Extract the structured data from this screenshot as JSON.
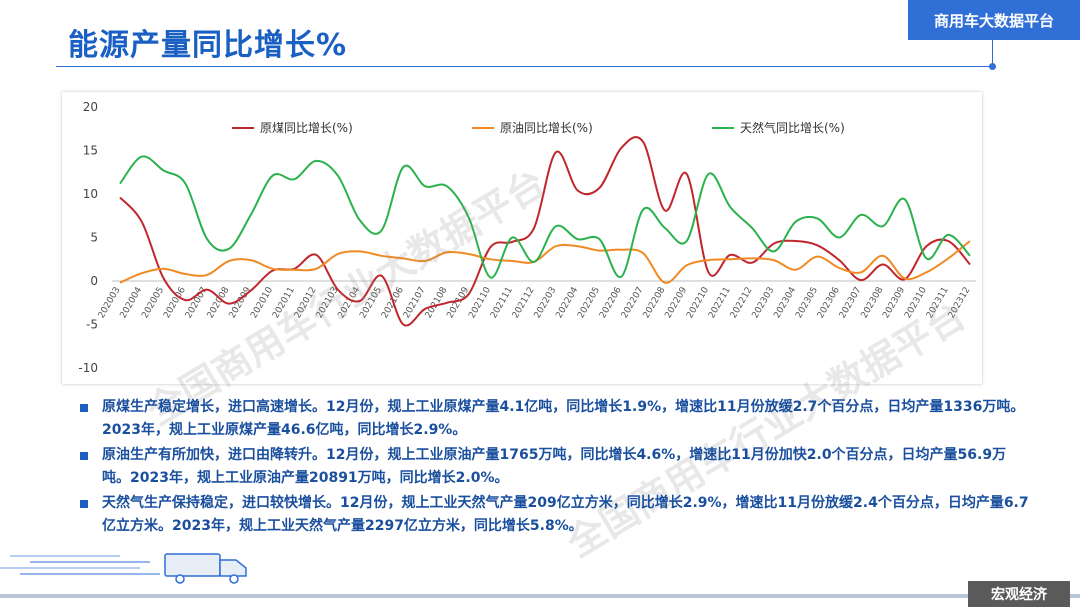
{
  "page": {
    "title": "能源产量同比增长%",
    "brand": "商用车大数据平台",
    "section_tag": "宏观经济"
  },
  "watermark": "全国商用车行业大数据平台",
  "chart_data": {
    "type": "line",
    "ylim": [
      -10,
      20
    ],
    "yticks": [
      20,
      15,
      10,
      5,
      0,
      -5,
      -10
    ],
    "x_labels": [
      "202003",
      "202004",
      "202005",
      "202006",
      "202007",
      "202008",
      "202009",
      "202010",
      "202011",
      "202012",
      "202103",
      "202104",
      "202105",
      "202106",
      "202107",
      "202108",
      "202109",
      "202110",
      "202111",
      "202112",
      "202203",
      "202204",
      "202205",
      "202206",
      "202207",
      "202208",
      "202209",
      "202210",
      "202211",
      "202212",
      "202303",
      "202304",
      "202305",
      "202306",
      "202307",
      "202308",
      "202309",
      "202310",
      "202311",
      "202312"
    ],
    "legend_position": "top",
    "series": [
      {
        "name": "原煤同比增长(%)",
        "color": "#c0262d",
        "values": [
          9.6,
          6.8,
          0.3,
          -2.2,
          -1.0,
          -2.6,
          -1.1,
          1.2,
          1.4,
          3.0,
          -1.0,
          -2.3,
          0.6,
          -5.0,
          -3.2,
          -2.5,
          -1.5,
          3.9,
          4.5,
          6.1,
          14.8,
          10.4,
          10.7,
          15.3,
          16.0,
          8.1,
          12.3,
          1.0,
          3.0,
          2.1,
          4.3,
          4.6,
          4.1,
          2.4,
          0.1,
          1.9,
          0.2,
          4.0,
          4.6,
          1.9
        ]
      },
      {
        "name": "原油同比增长(%)",
        "color": "#f08a24",
        "values": [
          -0.2,
          0.9,
          1.4,
          0.8,
          0.7,
          2.3,
          2.4,
          1.4,
          1.3,
          1.4,
          3.1,
          3.4,
          2.9,
          2.6,
          2.3,
          3.3,
          3.1,
          2.5,
          2.3,
          2.2,
          4.0,
          4.0,
          3.5,
          3.6,
          3.2,
          -0.2,
          1.8,
          2.4,
          2.5,
          2.6,
          2.4,
          1.3,
          2.8,
          1.5,
          1.0,
          2.9,
          0.3,
          1.0,
          2.6,
          4.6
        ]
      },
      {
        "name": "天然气同比增长(%)",
        "color": "#2bb24c",
        "values": [
          11.2,
          14.3,
          12.7,
          11.2,
          4.8,
          3.7,
          7.6,
          12.1,
          11.7,
          13.8,
          12.1,
          7.0,
          5.8,
          13.1,
          10.9,
          10.9,
          7.3,
          0.4,
          5.0,
          2.2,
          6.3,
          4.8,
          4.8,
          0.5,
          8.2,
          6.1,
          4.6,
          12.3,
          8.5,
          6.1,
          3.4,
          6.8,
          7.2,
          5.0,
          7.6,
          6.3,
          9.4,
          2.6,
          5.3,
          2.9
        ]
      }
    ]
  },
  "bullets": [
    "原煤生产稳定增长，进口高速增长。12月份，规上工业原煤产量4.1亿吨，同比增长1.9%，增速比11月份放缓2.7个百分点，日均产量1336万吨。2023年，规上工业原煤产量46.6亿吨，同比增长2.9%。",
    "原油生产有所加快，进口由降转升。12月份，规上工业原油产量1765万吨，同比增长4.6%，增速比11月份加快2.0个百分点，日均产量56.9万吨。2023年，规上工业原油产量20891万吨，同比增长2.0%。",
    "天然气生产保持稳定，进口较快增长。12月份，规上工业天然气产量209亿立方米，同比增长2.9%，增速比11月份放缓2.4个百分点，日均产量6.7亿立方米。2023年，规上工业天然气产量2297亿立方米，同比增长5.8%。"
  ]
}
